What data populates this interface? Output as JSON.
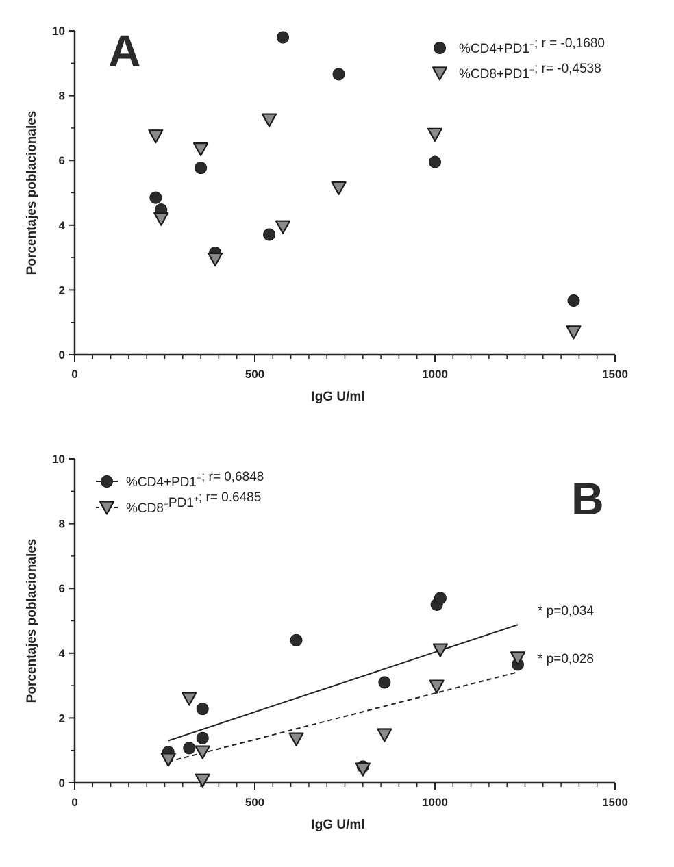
{
  "chart_data": [
    {
      "panel": "A",
      "type": "scatter",
      "xlabel": "IgG U/ml",
      "ylabel": "Porcentajes poblacionales",
      "xlim": [
        0,
        1500
      ],
      "ylim": [
        0,
        10
      ],
      "x_ticks": [
        "0",
        "500",
        "1000",
        "1500"
      ],
      "y_ticks": [
        "0",
        "2",
        "4",
        "6",
        "8",
        "10"
      ],
      "legend_position": "top-right",
      "series": [
        {
          "name": "%CD4+PD1+; r = -0,1680",
          "label_parts": [
            "%CD4+PD1",
            "+",
            "; r = -0,1680"
          ],
          "marker": "circle",
          "color": "#2b2b2b",
          "points": [
            [
              225,
              4.85
            ],
            [
              240,
              4.48
            ],
            [
              350,
              5.77
            ],
            [
              390,
              3.15
            ],
            [
              540,
              3.71
            ],
            [
              578,
              9.8
            ],
            [
              733,
              8.66
            ],
            [
              1000,
              5.95
            ],
            [
              1385,
              1.67
            ]
          ]
        },
        {
          "name": "%CD8+PD1+; r= -0,4538",
          "label_parts": [
            "%CD8+PD1",
            "+",
            "; r=  -0,4538"
          ],
          "marker": "triangle-down",
          "color": "#8a8a8a",
          "points": [
            [
              225,
              6.75
            ],
            [
              240,
              4.2
            ],
            [
              350,
              6.35
            ],
            [
              390,
              2.95
            ],
            [
              540,
              7.25
            ],
            [
              578,
              3.95
            ],
            [
              733,
              5.15
            ],
            [
              1000,
              6.8
            ],
            [
              1385,
              0.7
            ]
          ]
        }
      ]
    },
    {
      "panel": "B",
      "type": "scatter",
      "xlabel": "IgG U/ml",
      "ylabel": "Porcentajes poblacionales",
      "xlim": [
        0,
        1500
      ],
      "ylim": [
        0,
        10
      ],
      "x_ticks": [
        "0",
        "500",
        "1000",
        "1500"
      ],
      "y_ticks": [
        "0",
        "2",
        "4",
        "6",
        "8",
        "10"
      ],
      "legend_position": "top-left",
      "series": [
        {
          "name": "%CD4+PD1+; r= 0,6848",
          "label_parts": [
            "%CD4+PD1",
            "+",
            "; r= 0,6848"
          ],
          "marker": "circle",
          "color": "#2b2b2b",
          "line_style": "solid",
          "points": [
            [
              260,
              0.95
            ],
            [
              318,
              1.07
            ],
            [
              355,
              2.28
            ],
            [
              355,
              1.38
            ],
            [
              615,
              4.4
            ],
            [
              800,
              0.5
            ],
            [
              860,
              3.1
            ],
            [
              1005,
              5.5
            ],
            [
              1015,
              5.7
            ],
            [
              1230,
              3.65
            ]
          ],
          "fit": [
            [
              260,
              1.3
            ],
            [
              1230,
              4.88
            ]
          ],
          "annotation": "* p=0,034"
        },
        {
          "name": "%CD8+PD1+; r= 0.6485",
          "label_parts": [
            "%CD8",
            "+",
            "PD1",
            "+",
            "; r= 0.6485"
          ],
          "marker": "triangle-down",
          "color": "#8a8a8a",
          "line_style": "dashed",
          "points": [
            [
              260,
              0.72
            ],
            [
              318,
              2.6
            ],
            [
              355,
              0.95
            ],
            [
              355,
              0.08
            ],
            [
              615,
              1.35
            ],
            [
              800,
              0.42
            ],
            [
              860,
              1.48
            ],
            [
              1005,
              2.98
            ],
            [
              1015,
              4.1
            ],
            [
              1230,
              3.85
            ]
          ],
          "fit": [
            [
              260,
              0.65
            ],
            [
              1230,
              3.42
            ]
          ],
          "annotation": "* p=0,028"
        }
      ]
    }
  ]
}
